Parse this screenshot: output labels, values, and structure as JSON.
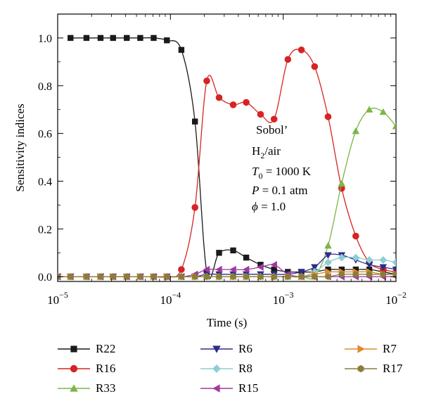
{
  "chart_data": {
    "type": "line",
    "xscale": "log",
    "xlim": [
      1e-05,
      0.01
    ],
    "ylim": [
      -0.02,
      1.1
    ],
    "xlabel": "Time (s)",
    "ylabel": "Sensitivity indices",
    "xtick_labels": [
      {
        "value": 1e-05,
        "base": "10",
        "exp": "−5"
      },
      {
        "value": 0.0001,
        "base": "10",
        "exp": "−4"
      },
      {
        "value": 0.001,
        "base": "10",
        "exp": "−3"
      },
      {
        "value": 0.01,
        "base": "10",
        "exp": "−2"
      }
    ],
    "ytick_labels": [
      {
        "value": 0.0,
        "label": "0.0"
      },
      {
        "value": 0.2,
        "label": "0.2"
      },
      {
        "value": 0.4,
        "label": "0.4"
      },
      {
        "value": 0.6,
        "label": "0.6"
      },
      {
        "value": 0.8,
        "label": "0.8"
      },
      {
        "value": 1.0,
        "label": "1.0"
      }
    ],
    "annotations": {
      "method": "Sobol’",
      "mixture_main": "H",
      "mixture_sub": "2",
      "mixture_rest": "/air",
      "t0_symbol": "T",
      "t0_sub": "0",
      "t0_rest": " = 1000 K",
      "p_symbol": "P",
      "p_rest": " = 0.1 atm",
      "phi_symbol": "ϕ",
      "phi_rest": " = 1.0"
    },
    "legend_placement": "below",
    "series": [
      {
        "name": "R22",
        "color": "#1a1a1a",
        "marker": "square",
        "x": [
          1.3e-05,
          1.8e-05,
          2.4e-05,
          3.1e-05,
          4.1e-05,
          5.4e-05,
          7.1e-05,
          9.3e-05,
          0.000125,
          0.000165,
          0.00021,
          0.00027,
          0.00036,
          0.00047,
          0.00063,
          0.00083,
          0.0011,
          0.00145,
          0.0019,
          0.0025,
          0.0033,
          0.0044,
          0.0058,
          0.0077,
          0.01
        ],
        "y": [
          1.0,
          1.0,
          1.0,
          1.0,
          1.0,
          1.0,
          1.0,
          0.99,
          0.95,
          0.65,
          0.02,
          0.1,
          0.11,
          0.08,
          0.05,
          0.03,
          0.02,
          0.02,
          0.02,
          0.03,
          0.03,
          0.03,
          0.03,
          0.02,
          0.01
        ]
      },
      {
        "name": "R16",
        "color": "#d62424",
        "marker": "circle",
        "x": [
          1e-05,
          1.3e-05,
          1.8e-05,
          2.4e-05,
          3.1e-05,
          4.1e-05,
          5.4e-05,
          7.1e-05,
          9.3e-05,
          0.000125,
          0.000165,
          0.00021,
          0.00027,
          0.00036,
          0.00047,
          0.00063,
          0.00083,
          0.0011,
          0.00145,
          0.0019,
          0.0025,
          0.0033,
          0.0044,
          0.0058,
          0.0077,
          0.01
        ],
        "y": [
          0.0,
          0.0,
          0.0,
          0.0,
          0.0,
          0.0,
          0.0,
          0.0,
          0.0,
          0.03,
          0.29,
          0.82,
          0.75,
          0.72,
          0.73,
          0.68,
          0.66,
          0.91,
          0.95,
          0.88,
          0.67,
          0.37,
          0.17,
          0.06,
          0.03,
          0.02
        ]
      },
      {
        "name": "R33",
        "color": "#7ab648",
        "marker": "triangle-up",
        "x": [
          1e-05,
          1.3e-05,
          1.8e-05,
          2.4e-05,
          3.1e-05,
          4.1e-05,
          5.4e-05,
          7.1e-05,
          9.3e-05,
          0.000125,
          0.000165,
          0.00021,
          0.00027,
          0.00036,
          0.00047,
          0.00063,
          0.00083,
          0.0011,
          0.00145,
          0.0019,
          0.0025,
          0.0033,
          0.0044,
          0.0058,
          0.0077,
          0.01
        ],
        "y": [
          0.0,
          0.0,
          0.0,
          0.0,
          0.0,
          0.0,
          0.0,
          0.0,
          0.0,
          0.0,
          0.0,
          0.0,
          0.0,
          0.0,
          0.0,
          0.0,
          0.0,
          0.0,
          0.0,
          0.0,
          0.13,
          0.39,
          0.61,
          0.7,
          0.69,
          0.63
        ]
      },
      {
        "name": "R6",
        "color": "#2c2c8c",
        "marker": "triangle-down",
        "x": [
          1e-05,
          1.3e-05,
          1.8e-05,
          2.4e-05,
          3.1e-05,
          4.1e-05,
          5.4e-05,
          7.1e-05,
          9.3e-05,
          0.000125,
          0.000165,
          0.00021,
          0.00027,
          0.00036,
          0.00047,
          0.00063,
          0.00083,
          0.0011,
          0.00145,
          0.0019,
          0.0025,
          0.0033,
          0.0044,
          0.0058,
          0.0077,
          0.01
        ],
        "y": [
          0.0,
          0.0,
          0.0,
          0.0,
          0.0,
          0.0,
          0.0,
          0.0,
          0.0,
          0.0,
          0.0,
          0.01,
          0.01,
          0.01,
          0.01,
          0.01,
          0.01,
          0.01,
          0.02,
          0.04,
          0.09,
          0.09,
          0.07,
          0.05,
          0.04,
          0.03
        ]
      },
      {
        "name": "R8",
        "color": "#8ecfd4",
        "marker": "diamond",
        "x": [
          1e-05,
          1.3e-05,
          1.8e-05,
          2.4e-05,
          3.1e-05,
          4.1e-05,
          5.4e-05,
          7.1e-05,
          9.3e-05,
          0.000125,
          0.000165,
          0.00021,
          0.00027,
          0.00036,
          0.00047,
          0.00063,
          0.00083,
          0.0011,
          0.00145,
          0.0019,
          0.0025,
          0.0033,
          0.0044,
          0.0058,
          0.0077,
          0.01
        ],
        "y": [
          0.0,
          0.0,
          0.0,
          0.0,
          0.0,
          0.0,
          0.0,
          0.0,
          0.0,
          0.0,
          0.0,
          0.0,
          0.0,
          0.0,
          0.0,
          0.0,
          0.0,
          0.0,
          0.0,
          0.02,
          0.06,
          0.08,
          0.08,
          0.07,
          0.07,
          0.06
        ]
      },
      {
        "name": "R15",
        "color": "#a0399d",
        "marker": "triangle-left",
        "x": [
          1e-05,
          1.3e-05,
          1.8e-05,
          2.4e-05,
          3.1e-05,
          4.1e-05,
          5.4e-05,
          7.1e-05,
          9.3e-05,
          0.000125,
          0.000165,
          0.00021,
          0.00027,
          0.00036,
          0.00047,
          0.00063,
          0.00083,
          0.0011,
          0.00145,
          0.0019,
          0.0025,
          0.0033,
          0.0044,
          0.0058,
          0.0077,
          0.01
        ],
        "y": [
          0.0,
          0.0,
          0.0,
          0.0,
          0.0,
          0.0,
          0.0,
          0.0,
          0.0,
          0.0,
          0.01,
          0.03,
          0.03,
          0.03,
          0.03,
          0.04,
          0.05,
          0.01,
          0.0,
          0.0,
          0.0,
          0.0,
          0.0,
          0.0,
          0.0,
          0.0
        ]
      },
      {
        "name": "R7",
        "color": "#e08a2c",
        "marker": "triangle-right",
        "x": [
          1e-05,
          1.3e-05,
          1.8e-05,
          2.4e-05,
          3.1e-05,
          4.1e-05,
          5.4e-05,
          7.1e-05,
          9.3e-05,
          0.000125,
          0.000165,
          0.00021,
          0.00027,
          0.00036,
          0.00047,
          0.00063,
          0.00083,
          0.0011,
          0.00145,
          0.0019,
          0.0025,
          0.0033,
          0.0044,
          0.0058,
          0.0077,
          0.01
        ],
        "y": [
          0.0,
          0.0,
          0.0,
          0.0,
          0.0,
          0.0,
          0.0,
          0.0,
          0.0,
          0.0,
          0.0,
          0.0,
          0.0,
          0.0,
          0.0,
          0.0,
          0.0,
          0.0,
          0.0,
          0.01,
          0.02,
          0.02,
          0.02,
          0.02,
          0.01,
          0.01
        ]
      },
      {
        "name": "R17",
        "color": "#8a7d3a",
        "marker": "hexagon",
        "x": [
          1e-05,
          1.3e-05,
          1.8e-05,
          2.4e-05,
          3.1e-05,
          4.1e-05,
          5.4e-05,
          7.1e-05,
          9.3e-05,
          0.000125,
          0.000165,
          0.00021,
          0.00027,
          0.00036,
          0.00047,
          0.00063,
          0.00083,
          0.0011,
          0.00145,
          0.0019,
          0.0025,
          0.0033,
          0.0044,
          0.0058,
          0.0077,
          0.01
        ],
        "y": [
          0.0,
          0.0,
          0.0,
          0.0,
          0.0,
          0.0,
          0.0,
          0.0,
          0.0,
          0.0,
          0.0,
          0.0,
          0.0,
          0.0,
          0.0,
          0.0,
          0.0,
          0.0,
          0.0,
          0.0,
          0.0,
          0.01,
          0.01,
          0.01,
          0.01,
          0.01
        ]
      }
    ]
  },
  "legend": [
    {
      "label": "R22",
      "series": 0
    },
    {
      "label": "R16",
      "series": 1
    },
    {
      "label": "R33",
      "series": 2
    },
    {
      "label": "R6",
      "series": 3
    },
    {
      "label": "R8",
      "series": 4
    },
    {
      "label": "R15",
      "series": 5
    },
    {
      "label": "R7",
      "series": 6
    },
    {
      "label": "R17",
      "series": 7
    }
  ]
}
